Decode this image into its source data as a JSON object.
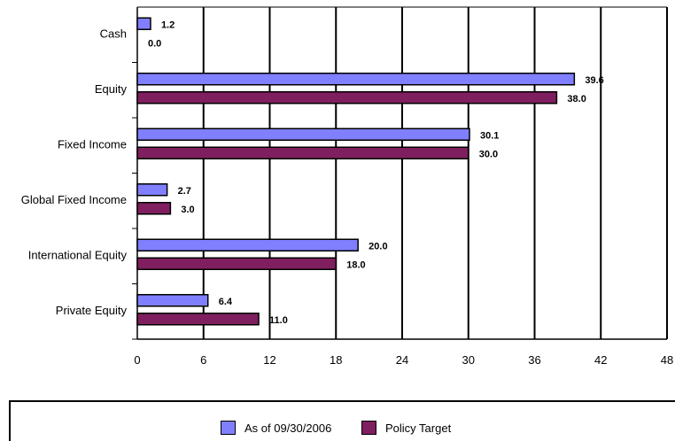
{
  "chart_data": {
    "type": "bar",
    "orientation": "horizontal",
    "categories": [
      "Cash",
      "Equity",
      "Fixed Income",
      "Global Fixed Income",
      "International Equity",
      "Private Equity"
    ],
    "series": [
      {
        "name": "As of 09/30/2006",
        "values": [
          1.2,
          39.6,
          30.1,
          2.7,
          20.0,
          6.4
        ],
        "labels": [
          "1.2",
          "39.6",
          "30.1",
          "2.7",
          "20.0",
          "6.4"
        ],
        "color": "#8080ff"
      },
      {
        "name": "Policy Target",
        "values": [
          0.0,
          38.0,
          30.0,
          3.0,
          18.0,
          11.0
        ],
        "labels": [
          "0.0",
          "38.0",
          "30.0",
          "3.0",
          "18.0",
          "11.0"
        ],
        "color": "#7f1f5f"
      }
    ],
    "xlim": [
      0,
      48
    ],
    "xticks": [
      "0",
      "6",
      "12",
      "18",
      "24",
      "30",
      "36",
      "42",
      "48"
    ],
    "grid": "vertical",
    "legend": "bottom"
  }
}
